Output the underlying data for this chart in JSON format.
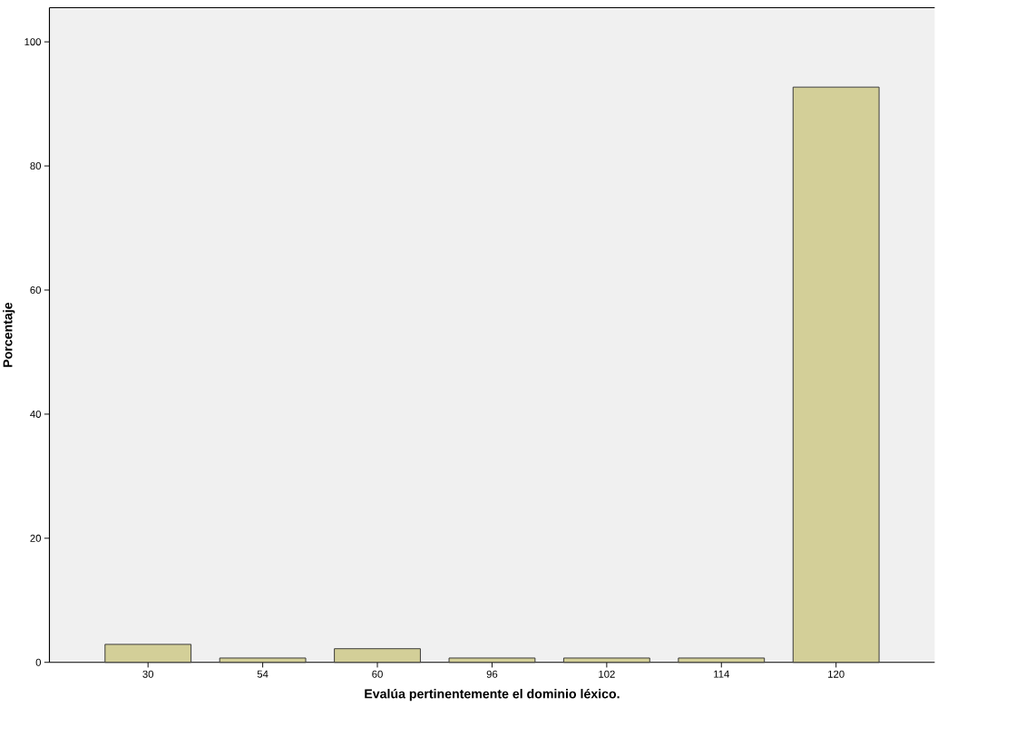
{
  "chart_data": {
    "type": "bar",
    "xlabel": "Evalúa pertinentemente el dominio léxico.",
    "ylabel": "Porcentaje",
    "categories": [
      "30",
      "54",
      "60",
      "96",
      "102",
      "114",
      "120"
    ],
    "values": [
      2.9,
      0.7,
      2.2,
      0.7,
      0.7,
      0.7,
      92.7
    ],
    "color": "#d3cf98",
    "ylim": [
      0,
      105.5
    ],
    "yticks": [
      0,
      20,
      40,
      60,
      80,
      100
    ],
    "grid": false
  }
}
